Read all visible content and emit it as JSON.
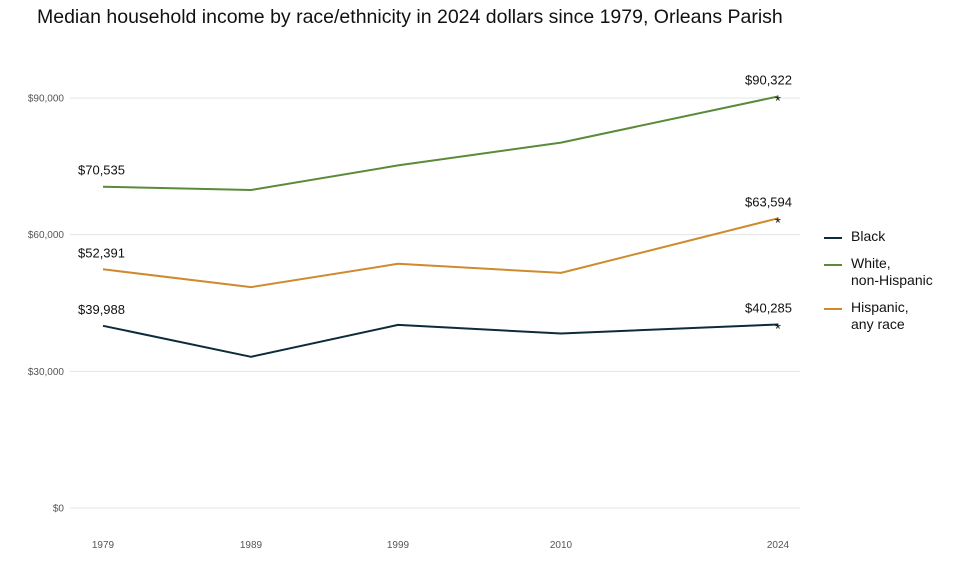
{
  "chart_data": {
    "type": "line",
    "title": "Median household income by race/ethnicity in 2024 dollars since 1979, Orleans Parish",
    "xlabel": "",
    "ylabel": "",
    "categories": [
      "1979",
      "1989",
      "1999",
      "2010",
      "2024"
    ],
    "y_ticks": [
      0,
      30000,
      60000,
      90000
    ],
    "y_tick_labels": [
      "$0",
      "$30,000",
      "$60,000",
      "$90,000"
    ],
    "ylim": [
      0,
      93000
    ],
    "grid": true,
    "legend_position": "right",
    "series": [
      {
        "name": "White, non-Hispanic",
        "legend_lines": [
          "White,",
          "non-Hispanic"
        ],
        "color": "#5a8a3a",
        "values": [
          70535,
          69800,
          75200,
          80200,
          90322
        ],
        "start_label": "$70,535",
        "end_label": "$90,322",
        "end_marker": "*"
      },
      {
        "name": "Hispanic, any race",
        "legend_lines": [
          "Hispanic,",
          "any race"
        ],
        "color": "#d08a2e",
        "values": [
          52391,
          48500,
          53600,
          51600,
          63594
        ],
        "start_label": "$52,391",
        "end_label": "$63,594",
        "end_marker": "*"
      },
      {
        "name": "Black",
        "legend_lines": [
          "Black"
        ],
        "color": "#0c2b3b",
        "values": [
          39988,
          33200,
          40200,
          38300,
          40285
        ],
        "start_label": "$39,988",
        "end_label": "$40,285",
        "end_marker": "*"
      }
    ],
    "legend_order": [
      "Black",
      "White, non-Hispanic",
      "Hispanic, any race"
    ]
  }
}
